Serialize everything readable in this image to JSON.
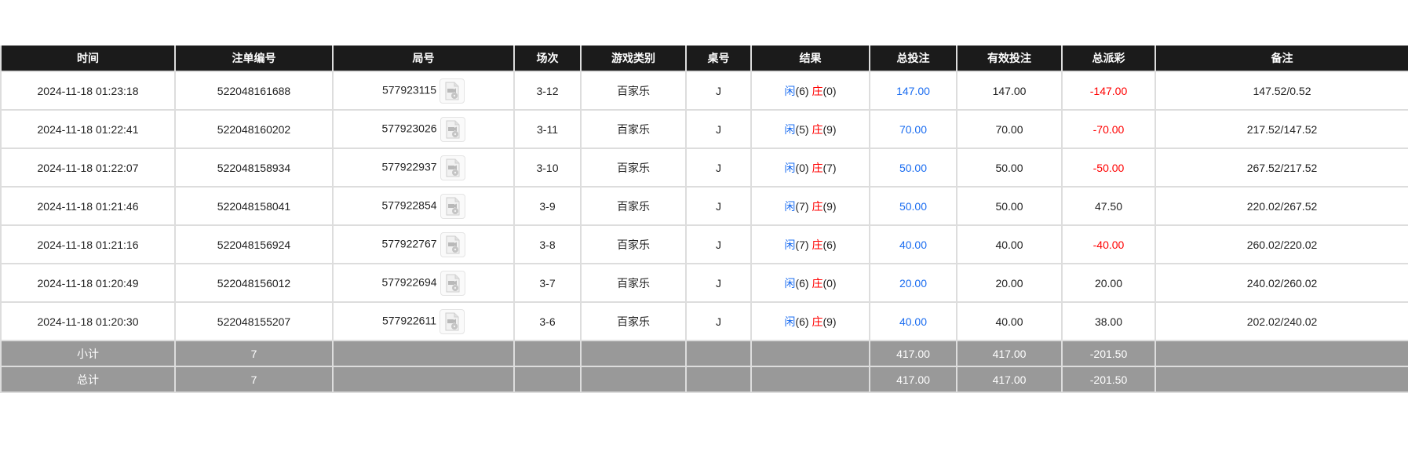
{
  "columns": [
    "时间",
    "注单编号",
    "局号",
    "场次",
    "游戏类别",
    "桌号",
    "结果",
    "总投注",
    "有效投注",
    "总派彩",
    "备注"
  ],
  "result_labels": {
    "player": "闲",
    "banker": "庄"
  },
  "rows": [
    {
      "time": "2024-11-18 01:23:18",
      "bet_id": "522048161688",
      "round": "577923115",
      "shoe": "3-12",
      "game": "百家乐",
      "table": "J",
      "player": "(6)",
      "banker": "(0)",
      "total_bet": "147.00",
      "valid_bet": "147.00",
      "payout": "-147.00",
      "payout_negative": true,
      "note": "147.52/0.52"
    },
    {
      "time": "2024-11-18 01:22:41",
      "bet_id": "522048160202",
      "round": "577923026",
      "shoe": "3-11",
      "game": "百家乐",
      "table": "J",
      "player": "(5)",
      "banker": "(9)",
      "total_bet": "70.00",
      "valid_bet": "70.00",
      "payout": "-70.00",
      "payout_negative": true,
      "note": "217.52/147.52"
    },
    {
      "time": "2024-11-18 01:22:07",
      "bet_id": "522048158934",
      "round": "577922937",
      "shoe": "3-10",
      "game": "百家乐",
      "table": "J",
      "player": "(0)",
      "banker": "(7)",
      "total_bet": "50.00",
      "valid_bet": "50.00",
      "payout": "-50.00",
      "payout_negative": true,
      "note": "267.52/217.52"
    },
    {
      "time": "2024-11-18 01:21:46",
      "bet_id": "522048158041",
      "round": "577922854",
      "shoe": "3-9",
      "game": "百家乐",
      "table": "J",
      "player": "(7)",
      "banker": "(9)",
      "total_bet": "50.00",
      "valid_bet": "50.00",
      "payout": "47.50",
      "payout_negative": false,
      "note": "220.02/267.52"
    },
    {
      "time": "2024-11-18 01:21:16",
      "bet_id": "522048156924",
      "round": "577922767",
      "shoe": "3-8",
      "game": "百家乐",
      "table": "J",
      "player": "(7)",
      "banker": "(6)",
      "total_bet": "40.00",
      "valid_bet": "40.00",
      "payout": "-40.00",
      "payout_negative": true,
      "note": "260.02/220.02"
    },
    {
      "time": "2024-11-18 01:20:49",
      "bet_id": "522048156012",
      "round": "577922694",
      "shoe": "3-7",
      "game": "百家乐",
      "table": "J",
      "player": "(6)",
      "banker": "(0)",
      "total_bet": "20.00",
      "valid_bet": "20.00",
      "payout": "20.00",
      "payout_negative": false,
      "note": "240.02/260.02"
    },
    {
      "time": "2024-11-18 01:20:30",
      "bet_id": "522048155207",
      "round": "577922611",
      "shoe": "3-6",
      "game": "百家乐",
      "table": "J",
      "player": "(6)",
      "banker": "(9)",
      "total_bet": "40.00",
      "valid_bet": "40.00",
      "payout": "38.00",
      "payout_negative": false,
      "note": "202.02/240.02"
    }
  ],
  "subtotal": {
    "label": "小计",
    "count": "7",
    "total_bet": "417.00",
    "valid_bet": "417.00",
    "payout": "-201.50"
  },
  "total": {
    "label": "总计",
    "count": "7",
    "total_bet": "417.00",
    "valid_bet": "417.00",
    "payout": "-201.50"
  },
  "colors": {
    "header_bg": "#1b1b1b",
    "summary_bg": "#999999",
    "blue": "#1a6cf0",
    "red": "#ff0000"
  },
  "icons": {
    "round_video": "video-file-icon"
  }
}
